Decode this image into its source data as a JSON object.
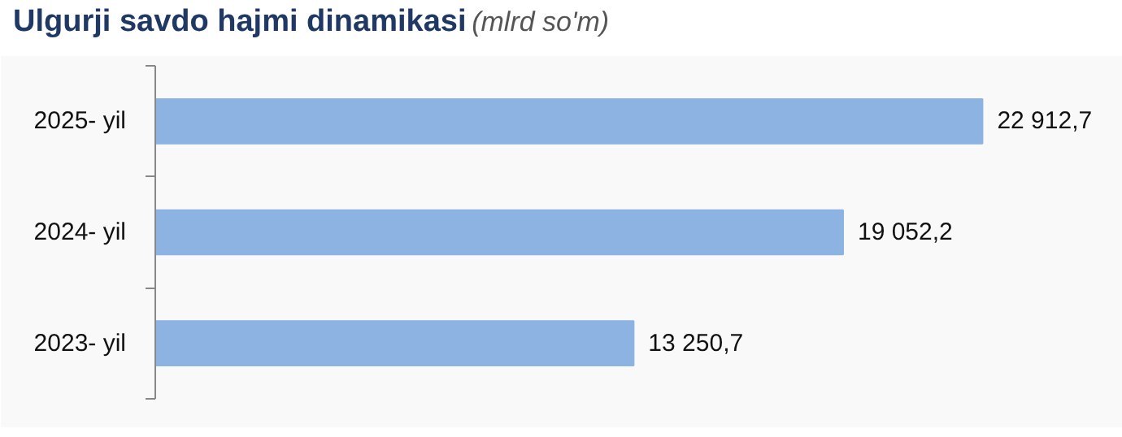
{
  "chart_data": {
    "type": "bar",
    "orientation": "horizontal",
    "title": "Ulgurji savdo hajmi dinamikasi",
    "subtitle": "(mlrd so'm)",
    "categories": [
      "2025- yil",
      "2024- yil",
      "2023- yil"
    ],
    "values": [
      22912.7,
      19052.2,
      13250.7
    ],
    "value_labels": [
      "22 912,7",
      "19 052,2",
      "13 250,7"
    ],
    "color": "#8db3e2",
    "xlim": [
      0,
      26800
    ],
    "grid": false
  }
}
